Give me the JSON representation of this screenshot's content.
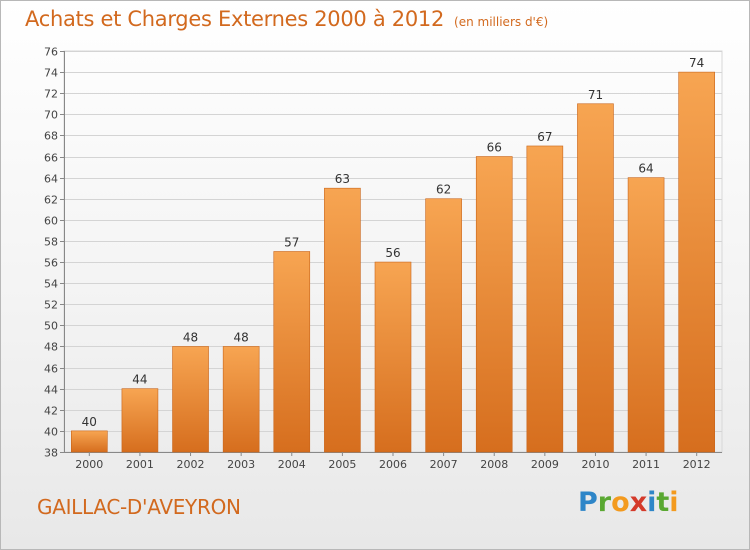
{
  "chart_data": {
    "type": "bar",
    "title": "Achats et Charges Externes 2000 à 2012",
    "subtitle": "(en milliers d'€)",
    "categories": [
      "2000",
      "2001",
      "2002",
      "2003",
      "2004",
      "2005",
      "2006",
      "2007",
      "2008",
      "2009",
      "2010",
      "2011",
      "2012"
    ],
    "values": [
      40,
      44,
      48,
      48,
      57,
      63,
      56,
      62,
      66,
      67,
      71,
      64,
      74
    ],
    "ylim": [
      38,
      76
    ],
    "ytick_step": 2,
    "grid": true,
    "bar_color": "#f39a45",
    "xlabel": "",
    "ylabel": ""
  },
  "footer": {
    "location": "GAILLAC-D'AVEYRON"
  },
  "logo": {
    "letters": [
      "P",
      "r",
      "o",
      "x",
      "i",
      "t",
      "i"
    ],
    "colors": [
      "#2e86c8",
      "#5aa832",
      "#f39a1e",
      "#d43a2a",
      "#2e86c8",
      "#5aa832",
      "#f39a1e"
    ]
  }
}
